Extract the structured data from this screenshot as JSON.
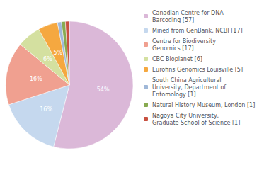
{
  "chart_data": {
    "type": "pie",
    "categories": [
      "Canadian Centre for DNA\nBarcoding [57]",
      "Mined from GenBank, NCBI [17]",
      "Centre for Biodiversity\nGenomics [17]",
      "CBC Bioplanet [6]",
      "Eurofins Genomics Louisville [5]",
      "South China Agricultural\nUniversity, Department of\nEntomology [1]",
      "Natural History Museum, London [1]",
      "Nagoya City University,\nGraduate School of Science [1]"
    ],
    "values": [
      54,
      16,
      16,
      6,
      5,
      1,
      1,
      1
    ],
    "value_labels": [
      "54%",
      "16%",
      "16%",
      "6%",
      "5%",
      null,
      null,
      null
    ],
    "data_labels": true,
    "colors": [
      "#dbb8d8",
      "#c5d8ee",
      "#f0a090",
      "#d4e0a0",
      "#f5a840",
      "#a0b8d8",
      "#88aa50",
      "#c85040"
    ],
    "legend": "right"
  }
}
